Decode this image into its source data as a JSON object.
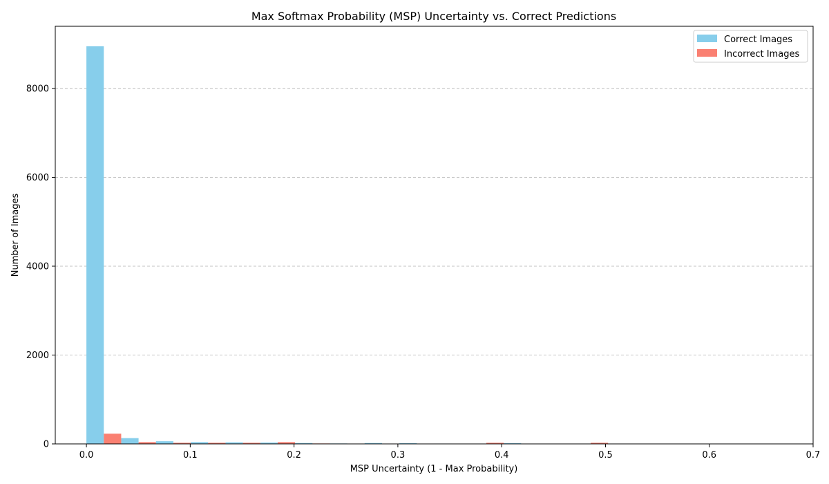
{
  "chart_data": {
    "type": "bar",
    "title": "Max Softmax Probability (MSP) Uncertainty vs. Correct Predictions",
    "xlabel": "MSP Uncertainty (1 - Max Probability)",
    "ylabel": "Number of Images",
    "xlim": [
      -0.03,
      0.7
    ],
    "ylim": [
      0,
      9400
    ],
    "xticks": [
      0.0,
      0.1,
      0.2,
      0.3,
      0.4,
      0.5,
      0.6,
      0.7
    ],
    "xtick_labels": [
      "0.0",
      "0.1",
      "0.2",
      "0.3",
      "0.4",
      "0.5",
      "0.6",
      "0.7"
    ],
    "yticks": [
      0,
      2000,
      4000,
      6000,
      8000
    ],
    "ytick_labels": [
      "0",
      "2000",
      "4000",
      "6000",
      "8000"
    ],
    "grid": {
      "y": true,
      "x": false,
      "style": "dashed"
    },
    "legend_position": "top-right",
    "bin_starts": [
      0.0,
      0.0335,
      0.067,
      0.1005,
      0.134,
      0.1675,
      0.201,
      0.2345,
      0.268,
      0.3015,
      0.335,
      0.3685,
      0.402,
      0.4355,
      0.469,
      0.5025,
      0.536,
      0.5695,
      0.603,
      0.6365
    ],
    "bin_width": 0.0335,
    "series": [
      {
        "name": "Correct Images",
        "color": "#87ceeb",
        "values": [
          8950,
          130,
          60,
          40,
          35,
          30,
          20,
          10,
          20,
          15,
          8,
          5,
          15,
          5,
          5,
          3,
          2,
          5,
          0,
          0
        ]
      },
      {
        "name": "Incorrect Images",
        "color": "#fa8072",
        "values": [
          230,
          40,
          25,
          25,
          25,
          40,
          10,
          5,
          5,
          5,
          5,
          25,
          5,
          5,
          25,
          3,
          3,
          5,
          5,
          0
        ]
      }
    ]
  }
}
